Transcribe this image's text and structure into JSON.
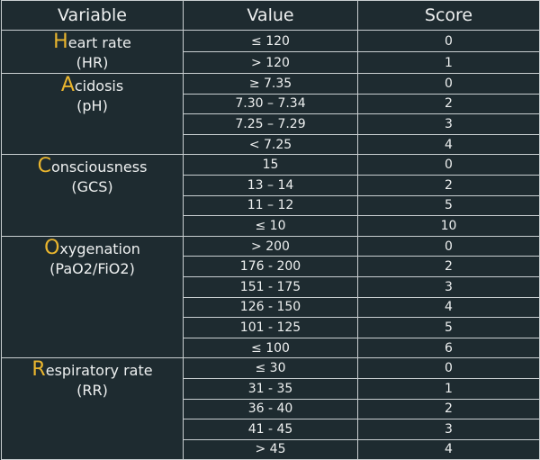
{
  "header": [
    "Variable",
    "Value",
    "Score"
  ],
  "groups": [
    {
      "initial": "H",
      "rest": "eart rate",
      "abbr": "(HR)",
      "rows": [
        [
          "≤ 120",
          0
        ],
        [
          "> 120",
          1
        ]
      ]
    },
    {
      "initial": "A",
      "rest": "cidosis",
      "abbr": "(pH)",
      "rows": [
        [
          "≥ 7.35",
          0
        ],
        [
          "7.30 – 7.34",
          2
        ],
        [
          "7.25 – 7.29",
          3
        ],
        [
          "< 7.25",
          4
        ]
      ]
    },
    {
      "initial": "C",
      "rest": "onsciousness",
      "abbr": "(GCS)",
      "rows": [
        [
          "15",
          0
        ],
        [
          "13 – 14",
          2
        ],
        [
          "11 – 12",
          5
        ],
        [
          "≤ 10",
          10
        ]
      ]
    },
    {
      "initial": "O",
      "rest": "xygenation",
      "abbr": "(PaO2/FiO2)",
      "rows": [
        [
          "> 200",
          0
        ],
        [
          "176 - 200",
          2
        ],
        [
          "151 - 175",
          3
        ],
        [
          "126 - 150",
          4
        ],
        [
          "101 - 125",
          5
        ],
        [
          "≤ 100",
          6
        ]
      ]
    },
    {
      "initial": "R",
      "rest": "espiratory rate",
      "abbr": "(RR)",
      "rows": [
        [
          "≤ 30",
          0
        ],
        [
          "31 - 35",
          1
        ],
        [
          "36 - 40",
          2
        ],
        [
          "41 - 45",
          3
        ],
        [
          "> 45",
          4
        ]
      ]
    }
  ]
}
